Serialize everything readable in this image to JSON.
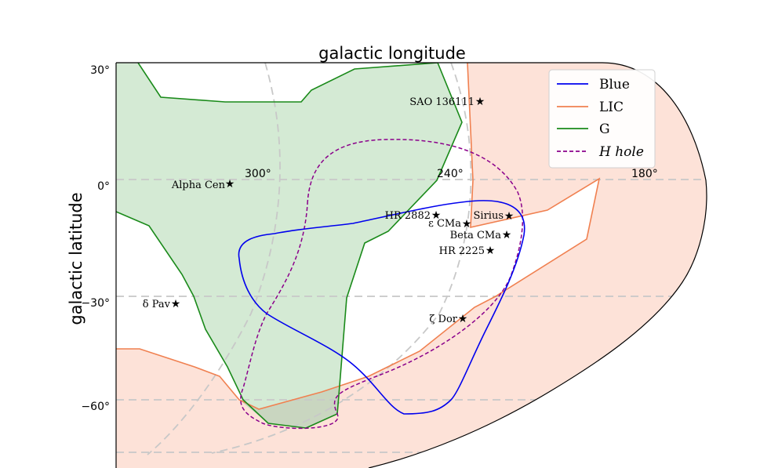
{
  "chart_data": {
    "type": "line",
    "projection": "galactic sky map (Mollweide)",
    "title": "galactic longitude",
    "xlabel": "galactic longitude",
    "ylabel": "galactic latitude",
    "grid": true,
    "legend_position": "top-right",
    "longitude_ticks": [
      "300°",
      "240°",
      "180°"
    ],
    "latitude_ticks": [
      "30°",
      "0°",
      "−30°",
      "−60°"
    ],
    "series": [
      {
        "name": "Blue",
        "style": "solid",
        "color": "#0000ee",
        "points": [
          [
            304,
            -17
          ],
          [
            300,
            -11
          ],
          [
            290,
            -8
          ],
          [
            275,
            -6
          ],
          [
            255,
            -3
          ],
          [
            235,
            -2
          ],
          [
            225,
            -7
          ],
          [
            224,
            -25
          ],
          [
            228,
            -46
          ],
          [
            232,
            -63
          ],
          [
            250,
            -60
          ],
          [
            262,
            -44
          ],
          [
            275,
            -34
          ],
          [
            287,
            -27
          ],
          [
            300,
            -17
          ],
          [
            304,
            -17
          ]
        ]
      },
      {
        "name": "LIC",
        "style": "solid",
        "color": "#f08050",
        "fill": "#fde2d8",
        "boundary": [
          [
            270,
            -47
          ],
          [
            258,
            -40
          ],
          [
            248,
            -36
          ],
          [
            240,
            -30
          ],
          [
            232,
            -28
          ],
          [
            212,
            -22
          ],
          [
            182,
            1
          ],
          [
            212,
            -8
          ],
          [
            230,
            -8
          ],
          [
            240,
            -10
          ],
          [
            244,
            -3
          ],
          [
            248,
            30
          ]
        ]
      },
      {
        "name": "G",
        "style": "solid",
        "color": "#1a8a1a",
        "fill": "#cfe8cf",
        "points": [
          [
            338,
            30
          ],
          [
            330,
            22
          ],
          [
            310,
            21
          ],
          [
            295,
            21
          ],
          [
            285,
            28
          ],
          [
            256,
            30
          ],
          [
            255,
            15
          ],
          [
            258,
            1
          ],
          [
            274,
            -12
          ],
          [
            286,
            -22
          ],
          [
            292,
            -38
          ],
          [
            294,
            -58
          ],
          [
            300,
            -67
          ],
          [
            315,
            -64
          ],
          [
            326,
            -50
          ],
          [
            332,
            -35
          ],
          [
            340,
            -12
          ],
          [
            345,
            -8
          ],
          [
            338,
            30
          ]
        ]
      },
      {
        "name": "H hole",
        "style": "dashed",
        "color": "#8b008b",
        "points": [
          [
            290,
            -3
          ],
          [
            270,
            9
          ],
          [
            258,
            10
          ],
          [
            248,
            3
          ],
          [
            243,
            -3
          ],
          [
            236,
            -7
          ],
          [
            228,
            -20
          ],
          [
            234,
            -37
          ],
          [
            256,
            -51
          ],
          [
            270,
            -65
          ],
          [
            290,
            -68
          ],
          [
            303,
            -57
          ],
          [
            298,
            -46
          ],
          [
            294,
            -33
          ],
          [
            290,
            -10
          ],
          [
            290,
            -3
          ]
        ]
      }
    ],
    "stars": [
      {
        "label": "SAO 136111",
        "l": 250,
        "b": 22
      },
      {
        "label": "Alpha Cen",
        "l": 316,
        "b": -1
      },
      {
        "label": "HR 2882",
        "l": 251,
        "b": -8
      },
      {
        "label": "ε CMa",
        "l": 240,
        "b": -11
      },
      {
        "label": "Sirius",
        "l": 227,
        "b": -9
      },
      {
        "label": "Beta CMa",
        "l": 226,
        "b": -14
      },
      {
        "label": "HR 2225",
        "l": 228,
        "b": -19
      },
      {
        "label": "δ Pav",
        "l": 329,
        "b": -32
      },
      {
        "label": "ζ Dor",
        "l": 254,
        "b": -35
      }
    ]
  }
}
